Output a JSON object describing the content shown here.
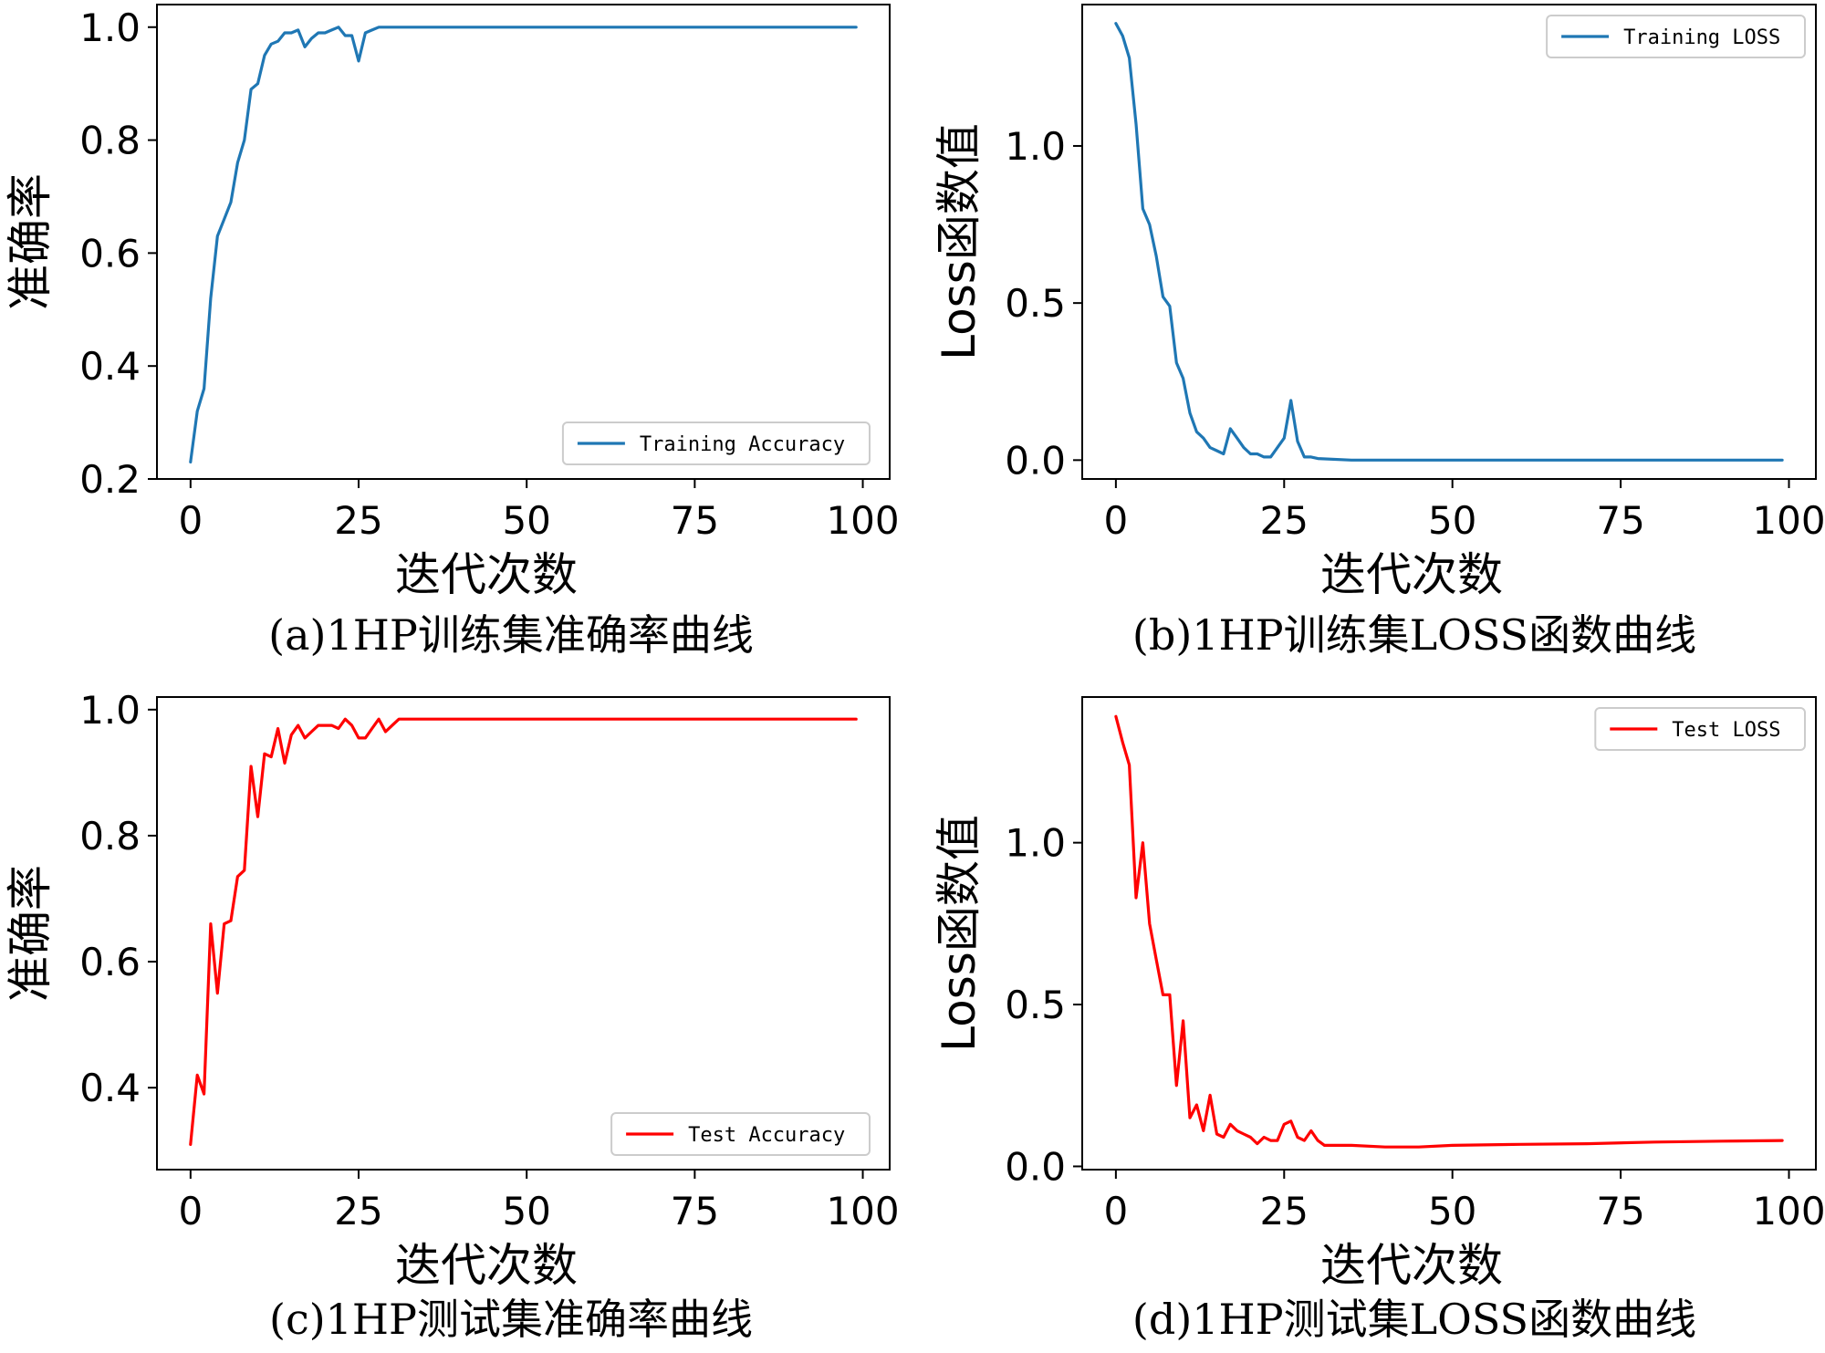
{
  "figure": {
    "panels": [
      {
        "id": "a",
        "caption": "(a)1HP训练集准确率曲线",
        "xlabel": "迭代次数",
        "ylabel": "准确率",
        "legend": "Training Accuracy",
        "legend_position": "bottom-right",
        "color": "#1f77b4",
        "xlim": [
          -5,
          104
        ],
        "ylim": [
          0.2,
          1.04
        ],
        "xticks": [
          0,
          25,
          50,
          75,
          100
        ],
        "xtick_labels": [
          "0",
          "25",
          "50",
          "75",
          "100"
        ],
        "yticks": [
          0.2,
          0.4,
          0.6,
          0.8,
          1.0
        ],
        "ytick_labels": [
          "0.2",
          "0.4",
          "0.6",
          "0.8",
          "1.0"
        ]
      },
      {
        "id": "b",
        "caption": "(b)1HP训练集LOSS函数曲线",
        "xlabel": "迭代次数",
        "ylabel": "Loss函数值",
        "legend": "Training LOSS",
        "legend_position": "top-right",
        "color": "#1f77b4",
        "xlim": [
          -5,
          104
        ],
        "ylim": [
          -0.06,
          1.45
        ],
        "xticks": [
          0,
          25,
          50,
          75,
          100
        ],
        "xtick_labels": [
          "0",
          "25",
          "50",
          "75",
          "100"
        ],
        "yticks": [
          0.0,
          0.5,
          1.0
        ],
        "ytick_labels": [
          "0.0",
          "0.5",
          "1.0"
        ]
      },
      {
        "id": "c",
        "caption": "(c)1HP测试集准确率曲线",
        "xlabel": "迭代次数",
        "ylabel": "准确率",
        "legend": "Test Accuracy",
        "legend_position": "bottom-right",
        "color": "#ff0000",
        "xlim": [
          -5,
          104
        ],
        "ylim": [
          0.27,
          1.02
        ],
        "xticks": [
          0,
          25,
          50,
          75,
          100
        ],
        "xtick_labels": [
          "0",
          "25",
          "50",
          "75",
          "100"
        ],
        "yticks": [
          0.4,
          0.6,
          0.8,
          1.0
        ],
        "ytick_labels": [
          "0.4",
          "0.6",
          "0.8",
          "1.0"
        ]
      },
      {
        "id": "d",
        "caption": "(d)1HP测试集LOSS函数曲线",
        "xlabel": "迭代次数",
        "ylabel": "Loss函数值",
        "legend": "Test LOSS",
        "legend_position": "top-right",
        "color": "#ff0000",
        "xlim": [
          -5,
          104
        ],
        "ylim": [
          -0.01,
          1.45
        ],
        "xticks": [
          0,
          25,
          50,
          75,
          100
        ],
        "xtick_labels": [
          "0",
          "25",
          "50",
          "75",
          "100"
        ],
        "yticks": [
          0.0,
          0.5,
          1.0
        ],
        "ytick_labels": [
          "0.0",
          "0.5",
          "1.0"
        ]
      }
    ]
  },
  "chart_data": [
    {
      "type": "line",
      "title": "(a)1HP训练集准确率曲线",
      "xlabel": "迭代次数",
      "ylabel": "准确率",
      "xlim": [
        -5,
        104
      ],
      "ylim": [
        0.2,
        1.04
      ],
      "series": [
        {
          "name": "Training Accuracy",
          "x": [
            0,
            1,
            2,
            3,
            4,
            5,
            6,
            7,
            8,
            9,
            10,
            11,
            12,
            13,
            14,
            15,
            16,
            17,
            18,
            19,
            20,
            21,
            22,
            23,
            24,
            25,
            26,
            27,
            28,
            29,
            30,
            99
          ],
          "values": [
            0.23,
            0.32,
            0.36,
            0.52,
            0.63,
            0.66,
            0.69,
            0.76,
            0.8,
            0.89,
            0.9,
            0.95,
            0.97,
            0.975,
            0.99,
            0.99,
            0.995,
            0.965,
            0.98,
            0.99,
            0.99,
            0.995,
            1.0,
            0.985,
            0.985,
            0.94,
            0.99,
            0.995,
            1.0,
            1.0,
            1.0,
            1.0
          ]
        }
      ]
    },
    {
      "type": "line",
      "title": "(b)1HP训练集LOSS函数曲线",
      "xlabel": "迭代次数",
      "ylabel": "Loss函数值",
      "xlim": [
        -5,
        104
      ],
      "ylim": [
        -0.06,
        1.45
      ],
      "series": [
        {
          "name": "Training LOSS",
          "x": [
            0,
            1,
            2,
            3,
            4,
            5,
            6,
            7,
            8,
            9,
            10,
            11,
            12,
            13,
            14,
            15,
            16,
            17,
            18,
            19,
            20,
            21,
            22,
            23,
            24,
            25,
            26,
            27,
            28,
            29,
            30,
            35,
            99
          ],
          "values": [
            1.39,
            1.35,
            1.28,
            1.07,
            0.8,
            0.75,
            0.65,
            0.52,
            0.49,
            0.31,
            0.26,
            0.15,
            0.09,
            0.07,
            0.04,
            0.03,
            0.02,
            0.1,
            0.07,
            0.04,
            0.02,
            0.02,
            0.01,
            0.01,
            0.04,
            0.07,
            0.19,
            0.06,
            0.01,
            0.01,
            0.005,
            0.0,
            0.0
          ]
        }
      ]
    },
    {
      "type": "line",
      "title": "(c)1HP测试集准确率曲线",
      "xlabel": "迭代次数",
      "ylabel": "准确率",
      "xlim": [
        -5,
        104
      ],
      "ylim": [
        0.27,
        1.02
      ],
      "series": [
        {
          "name": "Test Accuracy",
          "x": [
            0,
            1,
            2,
            3,
            4,
            5,
            6,
            7,
            8,
            9,
            10,
            11,
            12,
            13,
            14,
            15,
            16,
            17,
            18,
            19,
            20,
            21,
            22,
            23,
            24,
            25,
            26,
            27,
            28,
            29,
            30,
            31,
            99
          ],
          "values": [
            0.31,
            0.42,
            0.39,
            0.66,
            0.55,
            0.66,
            0.665,
            0.735,
            0.745,
            0.91,
            0.83,
            0.93,
            0.925,
            0.97,
            0.915,
            0.96,
            0.975,
            0.955,
            0.965,
            0.975,
            0.975,
            0.975,
            0.97,
            0.985,
            0.975,
            0.955,
            0.955,
            0.97,
            0.985,
            0.965,
            0.975,
            0.985,
            0.985
          ]
        }
      ]
    },
    {
      "type": "line",
      "title": "(d)1HP测试集LOSS函数曲线",
      "xlabel": "迭代次数",
      "ylabel": "Loss函数值",
      "xlim": [
        -5,
        104
      ],
      "ylim": [
        -0.01,
        1.45
      ],
      "series": [
        {
          "name": "Test LOSS",
          "x": [
            0,
            1,
            2,
            3,
            4,
            5,
            6,
            7,
            8,
            9,
            10,
            11,
            12,
            13,
            14,
            15,
            16,
            17,
            18,
            19,
            20,
            21,
            22,
            23,
            24,
            25,
            26,
            27,
            28,
            29,
            30,
            31,
            35,
            40,
            45,
            50,
            60,
            70,
            80,
            90,
            99
          ],
          "values": [
            1.39,
            1.31,
            1.24,
            0.83,
            1.0,
            0.75,
            0.64,
            0.53,
            0.53,
            0.25,
            0.45,
            0.15,
            0.19,
            0.11,
            0.22,
            0.1,
            0.09,
            0.13,
            0.11,
            0.1,
            0.09,
            0.07,
            0.09,
            0.08,
            0.08,
            0.13,
            0.14,
            0.09,
            0.08,
            0.11,
            0.08,
            0.065,
            0.065,
            0.06,
            0.06,
            0.065,
            0.068,
            0.07,
            0.075,
            0.078,
            0.08
          ]
        }
      ]
    }
  ]
}
